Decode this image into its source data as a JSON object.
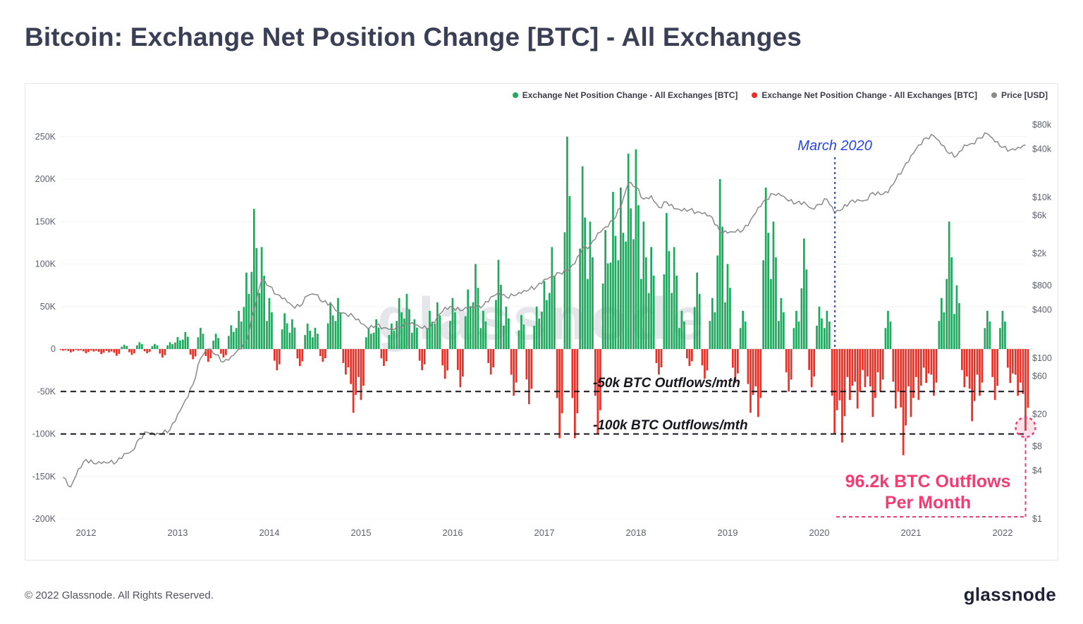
{
  "page": {
    "title": "Bitcoin: Exchange Net Position Change [BTC] - All Exchanges",
    "footer_copyright": "© 2022 Glassnode. All Rights Reserved.",
    "footer_logo": "glassnode",
    "watermark": "glassnode"
  },
  "legend": {
    "items": [
      {
        "label": "Exchange Net Position Change - All Exchanges [BTC]",
        "color": "#1fa95c"
      },
      {
        "label": "Exchange Net Position Change - All Exchanges [BTC]",
        "color": "#ed2e24"
      },
      {
        "label": "Price [USD]",
        "color": "#8a8a8a"
      }
    ]
  },
  "chart_data": {
    "type": "mixed",
    "title": "Bitcoin: Exchange Net Position Change [BTC] - All Exchanges",
    "x_unit": "decimal year, monthly samples",
    "x_start": 2011.75,
    "x_step": 0.0833333,
    "series": [
      {
        "name": "Exchange Net Position Change - All Exchanges [BTC]",
        "type": "bar",
        "axis": "left",
        "value_unit": "thousand BTC per month",
        "color_positive": "#1fa95c",
        "color_negative": "#ed2e24",
        "values": [
          -2,
          -4,
          -2,
          -5,
          -3,
          -6,
          -4,
          -8,
          5,
          -7,
          8,
          -5,
          6,
          -10,
          8,
          14,
          20,
          -12,
          25,
          -15,
          18,
          -10,
          28,
          45,
          90,
          165,
          120,
          60,
          -25,
          42,
          35,
          -20,
          30,
          25,
          -15,
          55,
          60,
          -30,
          -75,
          -60,
          25,
          35,
          -20,
          30,
          60,
          65,
          35,
          -25,
          45,
          55,
          -35,
          60,
          -45,
          70,
          100,
          45,
          -30,
          105,
          50,
          -55,
          40,
          -65,
          50,
          80,
          120,
          -105,
          250,
          -105,
          215,
          150,
          -100,
          140,
          185,
          190,
          230,
          235,
          150,
          120,
          -30,
          160,
          120,
          45,
          -20,
          90,
          -35,
          60,
          200,
          100,
          -40,
          45,
          -75,
          -80,
          190,
          150,
          60,
          -50,
          45,
          130,
          -45,
          50,
          45,
          -100,
          -110,
          -60,
          -70,
          -45,
          -80,
          -50,
          45,
          -70,
          -125,
          -80,
          -60,
          -40,
          -55,
          60,
          150,
          75,
          -45,
          -85,
          -55,
          45,
          -60,
          45,
          -40,
          -55,
          -96.2
        ]
      },
      {
        "name": "Price [USD]",
        "type": "line",
        "axis": "right",
        "scale": "log",
        "color": "#8a8a8a",
        "values": [
          3.3,
          2.5,
          4.2,
          5.5,
          4.9,
          4.9,
          5,
          5.1,
          6.5,
          7,
          10,
          12,
          11,
          11.5,
          13,
          20,
          30,
          47,
          100,
          130,
          110,
          90,
          105,
          130,
          160,
          400,
          950,
          780,
          620,
          560,
          450,
          440,
          600,
          620,
          500,
          480,
          380,
          360,
          330,
          270,
          230,
          260,
          240,
          235,
          245,
          270,
          260,
          235,
          240,
          330,
          430,
          430,
          390,
          415,
          430,
          450,
          580,
          660,
          580,
          600,
          640,
          710,
          780,
          960,
          1050,
          1150,
          1200,
          1500,
          2300,
          2500,
          3600,
          4300,
          5200,
          7500,
          15000,
          13500,
          9500,
          10500,
          7500,
          8800,
          7200,
          6800,
          7000,
          6600,
          6500,
          5600,
          3700,
          3600,
          3700,
          3900,
          5200,
          7500,
          9500,
          11000,
          10500,
          9000,
          8500,
          8800,
          7300,
          8200,
          9500,
          6400,
          7100,
          8800,
          9400,
          9200,
          11500,
          10800,
          11500,
          16500,
          23000,
          33000,
          45000,
          55000,
          58000,
          45000,
          35000,
          33000,
          45000,
          47000,
          55000,
          62000,
          49000,
          42000,
          39000,
          42000,
          45000
        ]
      }
    ],
    "left_axis": {
      "ticks": [
        "250K",
        "200K",
        "150K",
        "100K",
        "50K",
        "0",
        "-50K",
        "-100K",
        "-150K",
        "-200K"
      ],
      "tick_values": [
        250,
        200,
        150,
        100,
        50,
        0,
        -50,
        -100,
        -150,
        -200
      ],
      "range": [
        -200000,
        250000
      ],
      "unit": "BTC"
    },
    "right_axis": {
      "ticks": [
        "$80k",
        "$40k",
        "$10k",
        "$6k",
        "$2k",
        "$800",
        "$400",
        "$100",
        "$60",
        "$20",
        "$8",
        "$4",
        "$1"
      ],
      "tick_values": [
        80000,
        40000,
        10000,
        6000,
        2000,
        800,
        400,
        100,
        60,
        20,
        8,
        4,
        1
      ],
      "scale": "log",
      "range": [
        1,
        80000
      ],
      "unit": "USD"
    },
    "x_ticks": [
      "2012",
      "2013",
      "2014",
      "2015",
      "2016",
      "2017",
      "2018",
      "2019",
      "2020",
      "2021",
      "2022"
    ],
    "grid": "faint horizontal",
    "legend_position": "top-right",
    "annotations": {
      "march_2020": {
        "text": "March 2020",
        "x": 2020.17,
        "color": "#2743ee"
      },
      "outflow_50k": {
        "text": "-50k BTC Outflows/mth",
        "value": -50000,
        "color": "#15151c"
      },
      "outflow_100k": {
        "text": "-100k BTC Outflows/mth",
        "value": -100000,
        "color": "#15151c"
      },
      "highlight": {
        "text_line1": "96.2k BTC Outflows",
        "text_line2": "Per Month",
        "value": -96200,
        "x": 2022.25,
        "color": "#f23c72"
      }
    }
  }
}
